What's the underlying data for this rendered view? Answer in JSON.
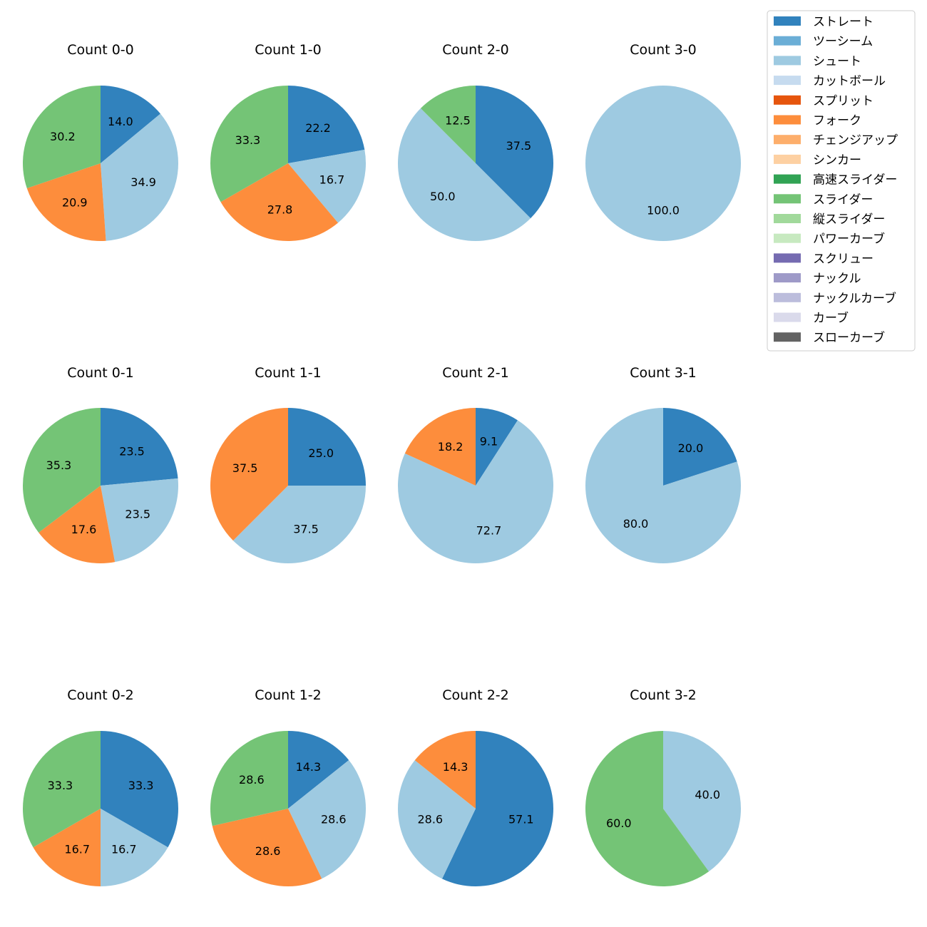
{
  "colors": {
    "ストレート": "#3182bd",
    "ツーシーム": "#6baed6",
    "シュート": "#9ecae1",
    "カットボール": "#c6dbef",
    "スプリット": "#e6550d",
    "フォーク": "#fd8d3c",
    "チェンジアップ": "#fdae6b",
    "シンカー": "#fdd0a2",
    "高速スライダー": "#31a354",
    "スライダー": "#74c476",
    "縦スライダー": "#a1d99b",
    "パワーカーブ": "#c7e9c0",
    "スクリュー": "#756bb1",
    "ナックル": "#9e9ac8",
    "ナックルカーブ": "#bcbddc",
    "カーブ": "#dadaeb",
    "スローカーブ": "#636363"
  },
  "chart_data": {
    "type": "pie",
    "legend": {
      "placement": "top-right",
      "entries": [
        "ストレート",
        "ツーシーム",
        "シュート",
        "カットボール",
        "スプリット",
        "フォーク",
        "チェンジアップ",
        "シンカー",
        "高速スライダー",
        "スライダー",
        "縦スライダー",
        "パワーカーブ",
        "スクリュー",
        "ナックル",
        "ナックルカーブ",
        "カーブ",
        "スローカーブ"
      ]
    },
    "start_angle_deg": 90,
    "direction": "clockwise",
    "pies": [
      {
        "title": "Count 0-0",
        "slices": [
          {
            "category": "ストレート",
            "value": 14.0,
            "label": "14.0"
          },
          {
            "category": "シュート",
            "value": 34.9,
            "label": "34.9"
          },
          {
            "category": "フォーク",
            "value": 20.9,
            "label": "20.9"
          },
          {
            "category": "スライダー",
            "value": 30.2,
            "label": "30.2"
          }
        ]
      },
      {
        "title": "Count 1-0",
        "slices": [
          {
            "category": "ストレート",
            "value": 22.2,
            "label": "22.2"
          },
          {
            "category": "シュート",
            "value": 16.7,
            "label": "16.7"
          },
          {
            "category": "フォーク",
            "value": 27.8,
            "label": "27.8"
          },
          {
            "category": "スライダー",
            "value": 33.3,
            "label": "33.3"
          }
        ]
      },
      {
        "title": "Count 2-0",
        "slices": [
          {
            "category": "ストレート",
            "value": 37.5,
            "label": "37.5"
          },
          {
            "category": "シュート",
            "value": 50.0,
            "label": "50.0"
          },
          {
            "category": "スライダー",
            "value": 12.5,
            "label": "12.5"
          }
        ]
      },
      {
        "title": "Count 3-0",
        "slices": [
          {
            "category": "シュート",
            "value": 100.0,
            "label": "100.0"
          }
        ]
      },
      {
        "title": "Count 0-1",
        "slices": [
          {
            "category": "ストレート",
            "value": 23.5,
            "label": "23.5"
          },
          {
            "category": "シュート",
            "value": 23.5,
            "label": "23.5"
          },
          {
            "category": "フォーク",
            "value": 17.6,
            "label": "17.6"
          },
          {
            "category": "スライダー",
            "value": 35.3,
            "label": "35.3"
          }
        ]
      },
      {
        "title": "Count 1-1",
        "slices": [
          {
            "category": "ストレート",
            "value": 25.0,
            "label": "25.0"
          },
          {
            "category": "シュート",
            "value": 37.5,
            "label": "37.5"
          },
          {
            "category": "フォーク",
            "value": 37.5,
            "label": "37.5"
          }
        ]
      },
      {
        "title": "Count 2-1",
        "slices": [
          {
            "category": "ストレート",
            "value": 9.1,
            "label": "9.1"
          },
          {
            "category": "シュート",
            "value": 72.7,
            "label": "72.7"
          },
          {
            "category": "フォーク",
            "value": 18.2,
            "label": "18.2"
          }
        ]
      },
      {
        "title": "Count 3-1",
        "slices": [
          {
            "category": "ストレート",
            "value": 20.0,
            "label": "20.0"
          },
          {
            "category": "シュート",
            "value": 80.0,
            "label": "80.0"
          }
        ]
      },
      {
        "title": "Count 0-2",
        "slices": [
          {
            "category": "ストレート",
            "value": 33.3,
            "label": "33.3"
          },
          {
            "category": "シュート",
            "value": 16.7,
            "label": "16.7"
          },
          {
            "category": "フォーク",
            "value": 16.7,
            "label": "16.7"
          },
          {
            "category": "スライダー",
            "value": 33.3,
            "label": "33.3"
          }
        ]
      },
      {
        "title": "Count 1-2",
        "slices": [
          {
            "category": "ストレート",
            "value": 14.3,
            "label": "14.3"
          },
          {
            "category": "シュート",
            "value": 28.6,
            "label": "28.6"
          },
          {
            "category": "フォーク",
            "value": 28.6,
            "label": "28.6"
          },
          {
            "category": "スライダー",
            "value": 28.6,
            "label": "28.6"
          }
        ]
      },
      {
        "title": "Count 2-2",
        "slices": [
          {
            "category": "ストレート",
            "value": 57.1,
            "label": "57.1"
          },
          {
            "category": "シュート",
            "value": 28.6,
            "label": "28.6"
          },
          {
            "category": "フォーク",
            "value": 14.3,
            "label": "14.3"
          }
        ]
      },
      {
        "title": "Count 3-2",
        "slices": [
          {
            "category": "シュート",
            "value": 40.0,
            "label": "40.0"
          },
          {
            "category": "スライダー",
            "value": 60.0,
            "label": "60.0"
          }
        ]
      }
    ]
  }
}
